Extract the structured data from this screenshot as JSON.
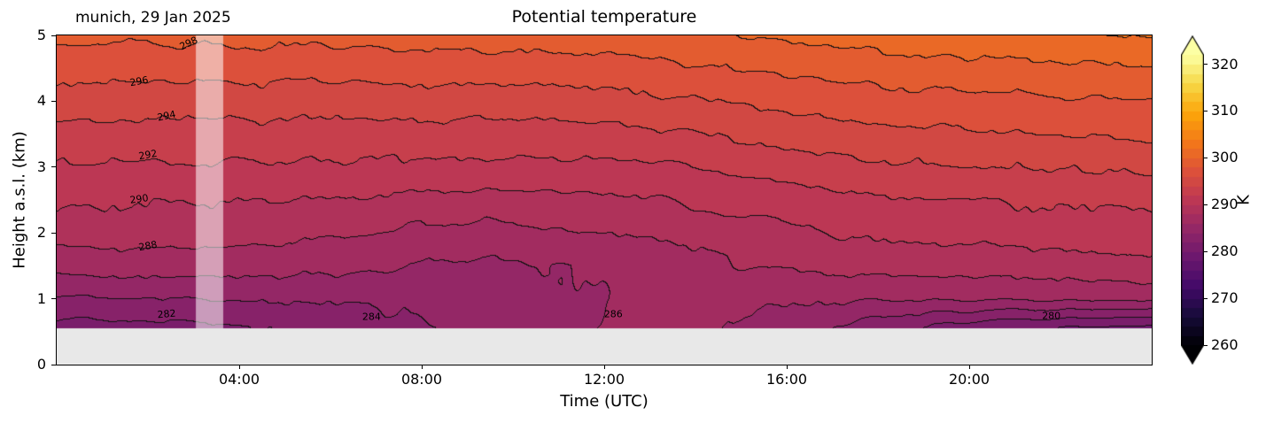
{
  "chart_data": {
    "type": "heatmap",
    "subtype": "filled_contour",
    "title": "Potential temperature",
    "annotation": "munich, 29 Jan 2025",
    "xlabel": "Time (UTC)",
    "ylabel": "Height a.s.l. (km)",
    "x_range_hours": [
      0,
      24
    ],
    "y_range_km": [
      0,
      5
    ],
    "x_ticks": [
      {
        "hour": 4,
        "label": "04:00"
      },
      {
        "hour": 8,
        "label": "08:00"
      },
      {
        "hour": 12,
        "label": "12:00"
      },
      {
        "hour": 16,
        "label": "16:00"
      },
      {
        "hour": 20,
        "label": "20:00"
      }
    ],
    "y_ticks": [
      {
        "km": 0,
        "label": "0"
      },
      {
        "km": 1,
        "label": "1"
      },
      {
        "km": 2,
        "label": "2"
      },
      {
        "km": 3,
        "label": "3"
      },
      {
        "km": 4,
        "label": "4"
      },
      {
        "km": 5,
        "label": "5"
      }
    ],
    "vmin_K": 260,
    "vmax_K": 322,
    "levels_step_K": 2,
    "masked_below_km": 0.55,
    "masked_color": "#e8e8e8",
    "missing_band_hours": [
      3.05,
      3.65
    ],
    "colormap": {
      "name": "inferno",
      "stops": [
        "#000004",
        "#160b39",
        "#420a68",
        "#6a176e",
        "#932667",
        "#bc3754",
        "#dd513a",
        "#f37819",
        "#fca50a",
        "#f6d746",
        "#fcffa4"
      ]
    },
    "colorbar": {
      "label": "K",
      "ticks": [
        260,
        270,
        280,
        290,
        300,
        310,
        320
      ],
      "extend": "both"
    },
    "grid": {
      "units": "K",
      "hours": [
        0,
        1,
        2,
        3,
        4,
        5,
        6,
        7,
        8,
        9,
        10,
        11,
        12,
        13,
        14,
        15,
        16,
        17,
        18,
        19,
        20,
        21,
        22,
        23,
        24
      ],
      "heights_km": [
        0.5,
        1.0,
        1.5,
        2.0,
        2.5,
        3.0,
        3.5,
        4.0,
        4.5,
        5.0
      ],
      "theta_K": [
        [
          280.8,
          280.9,
          281.0,
          281.0,
          281.4,
          281.8,
          282.3,
          283.0,
          283.6,
          284.3,
          285.0,
          285.6,
          286.2,
          286.5,
          286.4,
          285.8,
          285.0,
          283.8,
          282.5,
          281.3,
          280.3,
          279.6,
          279.2,
          278.9,
          278.7
        ],
        [
          283.8,
          283.8,
          283.9,
          283.9,
          284.0,
          284.1,
          284.2,
          284.4,
          284.7,
          285.0,
          285.3,
          285.7,
          286.0,
          286.2,
          286.3,
          286.5,
          286.5,
          286.4,
          286.3,
          286.3,
          286.3,
          286.4,
          286.4,
          286.5,
          286.5
        ],
        [
          287.0,
          287.0,
          287.0,
          286.9,
          286.9,
          286.8,
          286.6,
          286.2,
          286.0,
          285.8,
          285.7,
          286.0,
          286.3,
          286.8,
          287.4,
          288.0,
          288.3,
          288.5,
          288.6,
          288.8,
          289.0,
          289.1,
          289.2,
          289.3,
          289.4
        ],
        [
          288.9,
          288.8,
          288.8,
          288.8,
          288.7,
          288.5,
          288.2,
          287.9,
          287.6,
          287.4,
          287.5,
          287.7,
          287.9,
          288.2,
          288.7,
          289.2,
          289.7,
          290.0,
          290.3,
          290.5,
          290.7,
          290.8,
          291.0,
          291.1,
          291.2
        ],
        [
          290.4,
          290.3,
          290.3,
          290.2,
          290.1,
          290.0,
          289.9,
          289.7,
          289.5,
          289.4,
          289.3,
          289.3,
          289.5,
          289.8,
          290.2,
          290.6,
          291.0,
          291.4,
          291.7,
          291.9,
          292.1,
          292.2,
          292.3,
          292.4,
          292.5
        ],
        [
          291.9,
          291.9,
          291.8,
          291.8,
          291.7,
          291.7,
          291.6,
          291.6,
          291.5,
          291.5,
          291.5,
          291.6,
          291.7,
          291.9,
          292.2,
          292.6,
          293.0,
          293.3,
          293.6,
          293.8,
          294.0,
          294.1,
          294.2,
          294.3,
          294.4
        ],
        [
          293.4,
          293.4,
          293.4,
          293.3,
          293.3,
          293.3,
          293.3,
          293.2,
          293.2,
          293.2,
          293.3,
          293.4,
          293.5,
          293.7,
          294.0,
          294.4,
          294.8,
          295.1,
          295.4,
          295.6,
          295.8,
          296.0,
          296.1,
          296.2,
          296.3
        ],
        [
          295.1,
          295.1,
          295.1,
          295.1,
          295.0,
          295.0,
          295.0,
          295.0,
          295.0,
          295.1,
          295.1,
          295.2,
          295.4,
          295.6,
          295.9,
          296.2,
          296.6,
          296.9,
          297.1,
          297.3,
          297.5,
          297.6,
          297.7,
          297.8,
          297.8
        ],
        [
          296.7,
          296.7,
          296.7,
          296.7,
          296.7,
          296.7,
          296.8,
          296.8,
          296.8,
          296.9,
          297.0,
          297.1,
          297.3,
          297.5,
          297.8,
          298.1,
          298.4,
          298.7,
          299.0,
          299.2,
          299.4,
          299.6,
          299.7,
          299.9,
          300.0
        ],
        [
          298.4,
          298.4,
          298.4,
          298.5,
          298.5,
          298.5,
          298.6,
          298.6,
          298.7,
          298.8,
          298.9,
          299.0,
          299.2,
          299.5,
          299.8,
          300.1,
          300.4,
          300.7,
          301.0,
          301.2,
          301.5,
          301.7,
          301.8,
          302.0,
          302.1
        ]
      ]
    },
    "contour_labels": [
      {
        "text": "298",
        "t": 2.9,
        "z": 4.88,
        "angle": -25
      },
      {
        "text": "296",
        "t": 1.8,
        "z": 4.3,
        "angle": -10
      },
      {
        "text": "294",
        "t": 2.4,
        "z": 3.78,
        "angle": -12
      },
      {
        "text": "292",
        "t": 2.0,
        "z": 3.18,
        "angle": -10
      },
      {
        "text": "290",
        "t": 1.8,
        "z": 2.52,
        "angle": -8
      },
      {
        "text": "288",
        "t": 2.0,
        "z": 1.8,
        "angle": -10
      },
      {
        "text": "282",
        "t": 2.4,
        "z": 0.76,
        "angle": -5
      },
      {
        "text": "284",
        "t": 6.9,
        "z": 0.72,
        "angle": 0
      },
      {
        "text": "286",
        "t": 12.2,
        "z": 0.76,
        "angle": 0
      },
      {
        "text": "280",
        "t": 21.8,
        "z": 0.74,
        "angle": 0
      }
    ]
  }
}
